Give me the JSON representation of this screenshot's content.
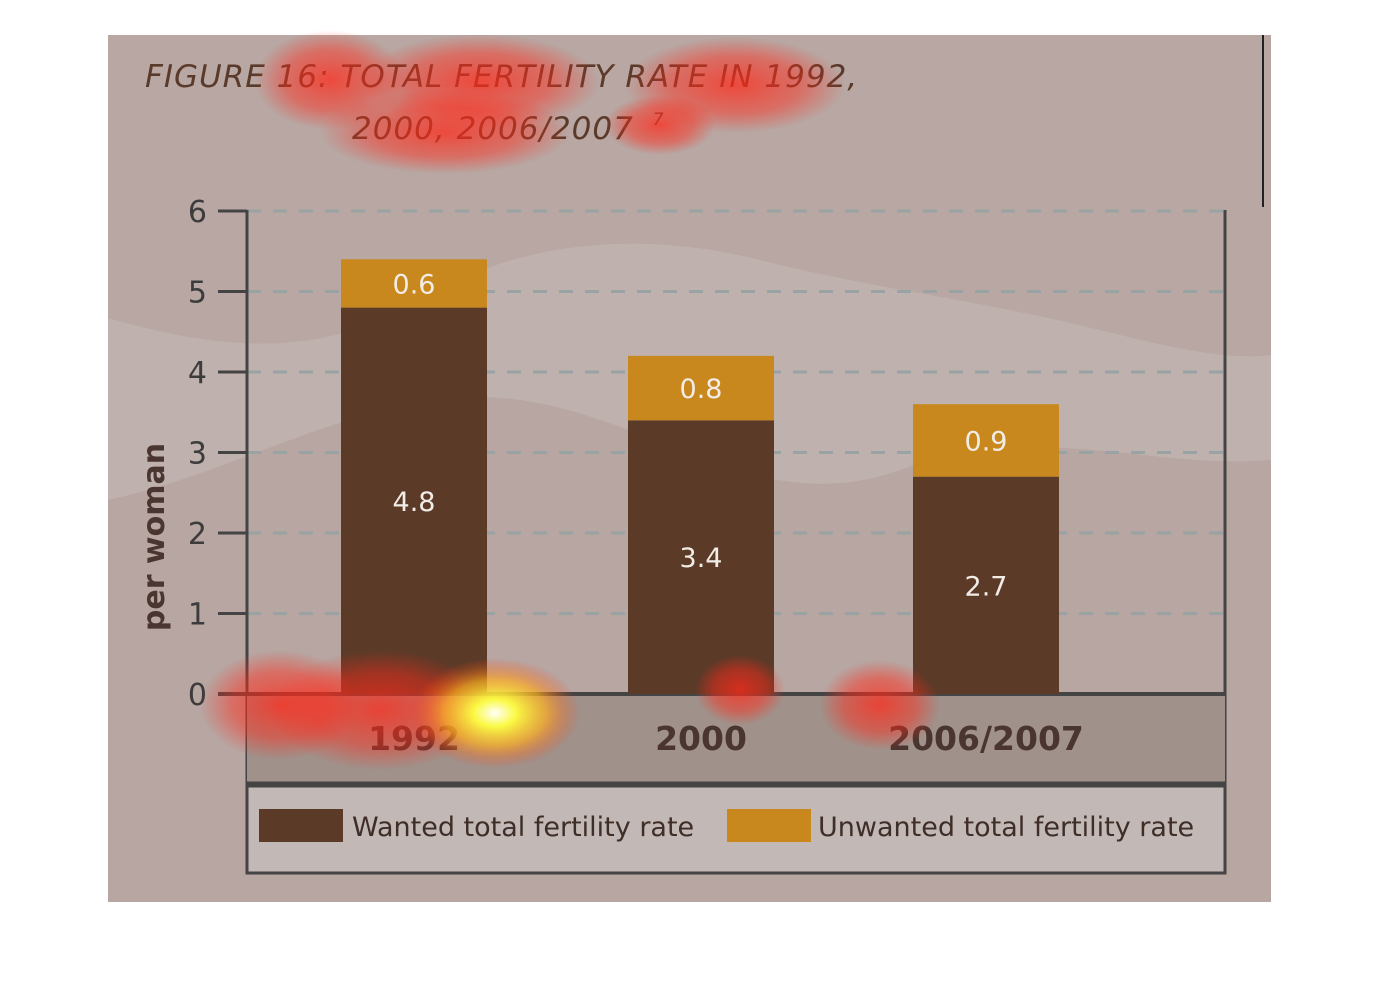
{
  "figure": {
    "title_line1": "FIGURE 16: TOTAL FERTILITY RATE IN 1992,",
    "title_line2": "2000, 2006/2007",
    "footnote": "7"
  },
  "colors": {
    "background": "#b8a7a3",
    "wanted": "#5b3a28",
    "unwanted": "#c8881e",
    "axis": "#444444",
    "title": "#5a3a2a",
    "category_band": "#a0918a",
    "legend_bg": "#c2b8b5"
  },
  "chart_data": {
    "type": "bar",
    "stacked": true,
    "title": "FIGURE 16: TOTAL FERTILITY RATE IN 1992, 2000, 2006/2007",
    "ylabel": "per woman",
    "xlabel": "",
    "ylim": [
      0,
      6
    ],
    "yticks": [
      "0",
      "1",
      "2",
      "3",
      "4",
      "5",
      "6"
    ],
    "grid": true,
    "legend_position": "bottom",
    "categories": [
      "1992",
      "2000",
      "2006/2007"
    ],
    "series": [
      {
        "name": "Wanted total fertility rate",
        "values": [
          4.8,
          3.4,
          2.7
        ],
        "labels": [
          "4.8",
          "3.4",
          "2.7"
        ]
      },
      {
        "name": "Unwanted total fertility rate",
        "values": [
          0.6,
          0.8,
          0.9
        ],
        "labels": [
          "0.6",
          "0.8",
          "0.9"
        ]
      }
    ]
  }
}
